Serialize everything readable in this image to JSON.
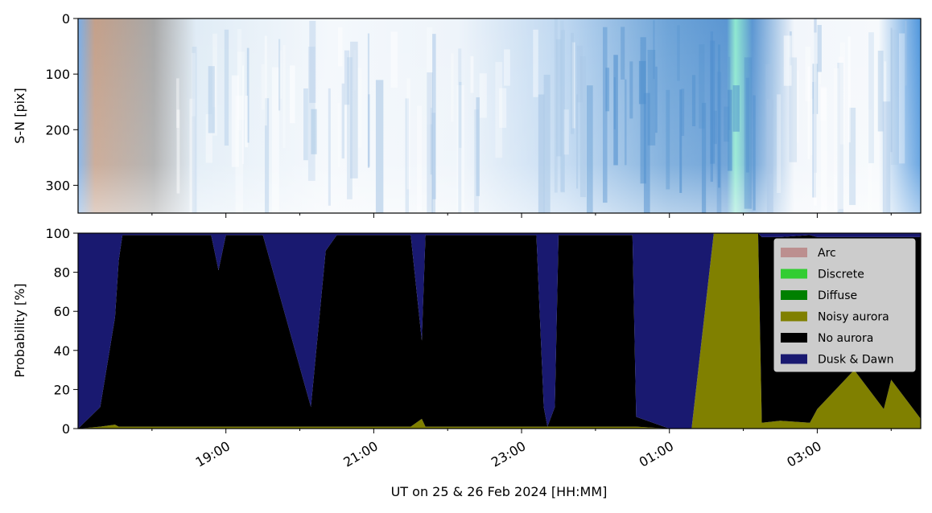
{
  "chart_data": [
    {
      "type": "heatmap",
      "ylabel": "S-N [pix]",
      "ylim": [
        350,
        0
      ],
      "yticks": [
        0,
        100,
        200,
        300
      ],
      "x_range_hours": [
        17.0,
        28.4
      ]
    },
    {
      "type": "area",
      "stacked": true,
      "ylabel": "Probability [%]",
      "xlabel": "UT on 25 & 26 Feb 2024 [HH:MM]",
      "ylim": [
        0,
        100
      ],
      "yticks": [
        0,
        20,
        40,
        60,
        80,
        100
      ],
      "xticks": [
        {
          "hour": 19,
          "label": "19:00"
        },
        {
          "hour": 21,
          "label": "21:00"
        },
        {
          "hour": 23,
          "label": "23:00"
        },
        {
          "hour": 25,
          "label": "01:00"
        },
        {
          "hour": 27,
          "label": "03:00"
        }
      ],
      "legend_position": "top-right",
      "legend": [
        {
          "name": "Arc",
          "color": "#bc8f8f"
        },
        {
          "name": "Discrete",
          "color": "#32cd32"
        },
        {
          "name": "Diffuse",
          "color": "#008000"
        },
        {
          "name": "Noisy aurora",
          "color": "#808000"
        },
        {
          "name": "No aurora",
          "color": "#000000"
        },
        {
          "name": "Dusk & Dawn",
          "color": "#191970"
        }
      ],
      "x": [
        17.0,
        17.3,
        17.5,
        17.55,
        17.6,
        18.8,
        18.9,
        19.0,
        19.5,
        20.15,
        20.35,
        20.5,
        21.5,
        21.65,
        21.7,
        22.3,
        23.2,
        23.3,
        23.35,
        23.45,
        23.5,
        24.5,
        24.55,
        25.0,
        25.3,
        25.6,
        25.65,
        26.2,
        26.25,
        26.5,
        26.9,
        27.0,
        27.5,
        27.9,
        28.0,
        28.4
      ],
      "series": [
        {
          "name": "Noisy aurora",
          "values": [
            0,
            1,
            2,
            1,
            1,
            1,
            1,
            1,
            1,
            1,
            1,
            1,
            1,
            5,
            1,
            1,
            1,
            1,
            1,
            1,
            1,
            1,
            1,
            0,
            0,
            100,
            100,
            100,
            3,
            4,
            3,
            10,
            30,
            10,
            25,
            5
          ]
        },
        {
          "name": "No aurora",
          "values": [
            0,
            10,
            55,
            85,
            98,
            98,
            80,
            98,
            98,
            10,
            90,
            98,
            98,
            40,
            98,
            98,
            98,
            10,
            0,
            10,
            98,
            98,
            5,
            0,
            0,
            0,
            0,
            0,
            95,
            94,
            96,
            88,
            68,
            88,
            73,
            93
          ]
        },
        {
          "name": "Dusk & Dawn",
          "values": [
            100,
            89,
            43,
            14,
            1,
            1,
            19,
            1,
            1,
            89,
            9,
            1,
            1,
            55,
            1,
            1,
            1,
            89,
            99,
            89,
            1,
            1,
            94,
            100,
            100,
            0,
            0,
            0,
            2,
            2,
            1,
            2,
            2,
            2,
            2,
            2
          ]
        }
      ]
    }
  ]
}
